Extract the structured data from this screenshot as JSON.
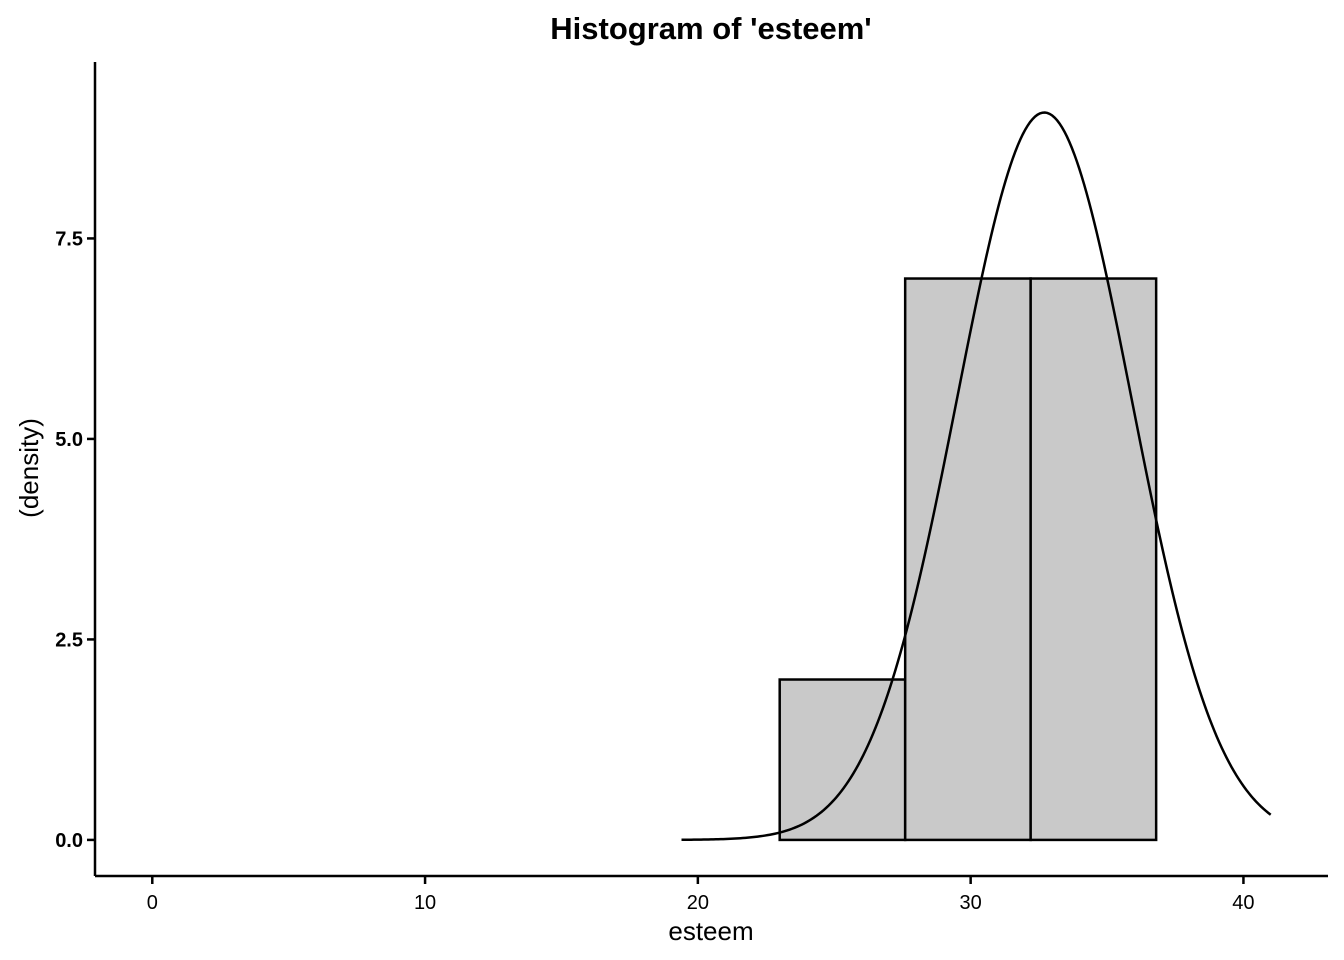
{
  "chart_data": {
    "type": "histogram",
    "title": "Histogram of 'esteem'",
    "xlabel": "esteem",
    "ylabel": "(density)",
    "xlim": [
      -2.1,
      43.1
    ],
    "ylim": [
      -0.45,
      9.7
    ],
    "x_ticks": [
      0,
      10,
      20,
      30,
      40
    ],
    "x_tick_labels": [
      "0",
      "10",
      "20",
      "30",
      "40"
    ],
    "y_ticks": [
      0,
      2.5,
      5,
      7.5
    ],
    "y_tick_labels": [
      "0.0",
      "2.5",
      "5.0",
      "7.5"
    ],
    "grid": false,
    "legend": "none",
    "bins": [
      {
        "x0": 0.0,
        "x1": 4.6,
        "value": 0
      },
      {
        "x0": 4.6,
        "x1": 9.2,
        "value": 0
      },
      {
        "x0": 9.2,
        "x1": 13.8,
        "value": 0
      },
      {
        "x0": 13.8,
        "x1": 18.4,
        "value": 0
      },
      {
        "x0": 18.4,
        "x1": 23.0,
        "value": 0
      },
      {
        "x0": 23.0,
        "x1": 27.6,
        "value": 2
      },
      {
        "x0": 27.6,
        "x1": 32.2,
        "value": 7
      },
      {
        "x0": 32.2,
        "x1": 36.8,
        "value": 7
      }
    ],
    "density_curve": {
      "type": "normal",
      "mean": 32.7,
      "sd": 3.2,
      "peak": 9.07,
      "x_range": [
        19.4,
        41.0
      ]
    },
    "colors": {
      "bar_fill": "#c9c9c9",
      "bar_stroke": "#000000",
      "curve": "#000000",
      "axis": "#000000"
    }
  }
}
